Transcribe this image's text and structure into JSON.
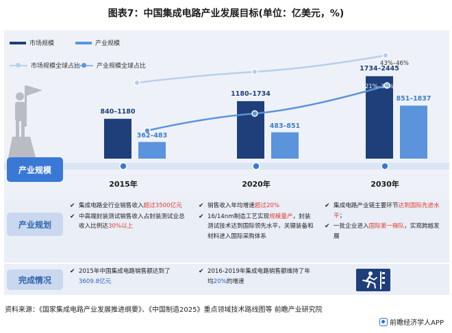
{
  "title": "图表7：中国集成电路产业发展目标(单位：亿美元，%)",
  "legend": {
    "market_scale": "市场规模",
    "industry_scale": "产业规模",
    "market_share": "市场规模全球占比",
    "industry_share": "产业规模全球占比"
  },
  "colors": {
    "market_bar": "#1f3f7a",
    "industry_bar": "#5b93dc",
    "market_line": "#b8cfed",
    "industry_line": "#5b93dc",
    "timeline_dot": "#3a78d6"
  },
  "chart_data": {
    "type": "bar",
    "categories": [
      "2015年",
      "2020年",
      "2030年"
    ],
    "series": [
      {
        "name": "市场规模",
        "labels": [
          "840-1180",
          "1180-1734",
          "1734-2445"
        ],
        "values": [
          1010,
          1457,
          2090
        ]
      },
      {
        "name": "产业规模",
        "labels": [
          "362-483",
          "483-851",
          "851-1837"
        ],
        "values": [
          422,
          667,
          1344
        ]
      },
      {
        "name": "市场规模全球占比",
        "labels": [
          "",
          "",
          "43%-46%"
        ],
        "values": [
          null,
          null,
          44.5
        ]
      },
      {
        "name": "产业规模全球占比",
        "labels": [
          "",
          "",
          "21%-34%"
        ],
        "values": [
          null,
          null,
          27.5
        ]
      }
    ],
    "grid": false,
    "legend_position": "top-left"
  },
  "value_labels": {
    "market": [
      "840–1180",
      "1180–1734",
      "1734–2445"
    ],
    "industry": [
      "362–483",
      "483–851",
      "851–1837"
    ],
    "market_share_2030": "43%–46%",
    "industry_share_2030": "21%–34%"
  },
  "rows": {
    "industry_scale": "产业规模",
    "plan": "产业规划",
    "done": "完成情况"
  },
  "plan": {
    "c2015": [
      {
        "pre": "集成电路全行业销售收入",
        "hl": "超过3500亿元",
        "hlc": "red",
        "post": ""
      },
      {
        "pre": "中高端封装测试销售收入占封装测试业总收入比例达",
        "hl": "30%以上",
        "hlc": "red",
        "post": ""
      }
    ],
    "c2020": [
      {
        "pre": "销售收入年均增速",
        "hl": "超过20%",
        "hlc": "red",
        "post": ""
      },
      {
        "pre": "16/14nm制造工艺实现",
        "hl": "规模量产",
        "hlc": "red",
        "post": "，封装测试技术达到国际领先水平，关键装备和材料进入国际采购体系"
      }
    ],
    "c2030": [
      {
        "pre": "集成电路产业链主要环节",
        "hl": "达到国际先进水平",
        "hlc": "red",
        "post": "；"
      },
      {
        "pre": "一批企业进入",
        "hl": "国际第一梯队",
        "hlc": "red",
        "post": "，实现跨越发展"
      }
    ]
  },
  "done": {
    "c2015": {
      "pre": "2015年中国集成电路销售额达到了",
      "hl": "3609.8亿元",
      "hlc": "blue",
      "post": ""
    },
    "c2020": {
      "pre": "2016-2019年集成电路销售额维持了年均",
      "hl": "20%",
      "hlc": "blue",
      "post": "的增速"
    }
  },
  "icons": {
    "figure": "businessman-flag-icon",
    "runner": "runner-finish-icon",
    "brand": "qianzhan-logo-icon"
  },
  "source": "资料来源：《国家集成电路产业发展推进纲要》、《中国制造2025》重点领域技术路线图等 前瞻产业研究院",
  "brand": "前瞻经济学人APP",
  "checkmark": "✔"
}
